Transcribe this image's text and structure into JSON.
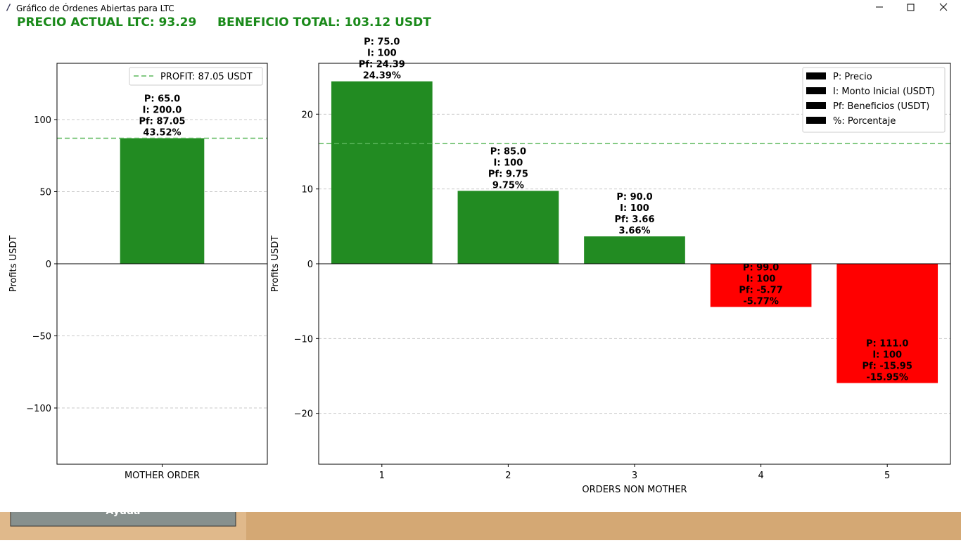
{
  "window": {
    "title": "Gráfico de Órdenes Abiertas para LTC"
  },
  "header": {
    "price": "PRECIO ACTUAL LTC: 93.29",
    "total": "BENEFICIO TOTAL: 103.12 USDT"
  },
  "footer": {
    "button": "Ayuda"
  },
  "chart_data": [
    {
      "type": "bar",
      "categories": [
        "MOTHER ORDER"
      ],
      "values": [
        87.05
      ],
      "colors": [
        "#228b22"
      ],
      "ylabel": "Profits USDT",
      "ylim": [
        -139,
        139
      ],
      "yticks": [
        {
          "value": -100,
          "label": "−100"
        },
        {
          "value": -50,
          "label": "−50"
        },
        0,
        50,
        100
      ],
      "grid": true,
      "annotations": [
        [
          "P: 65.0",
          "I: 200.0",
          "Pf: 87.05",
          "43.52%"
        ]
      ],
      "hline": {
        "value": 87.05,
        "label": "PROFIT: 87.05 USDT",
        "color": "#5cb85c"
      },
      "legend": "upper right"
    },
    {
      "type": "bar",
      "categories": [
        "1",
        "2",
        "3",
        "4",
        "5"
      ],
      "values": [
        24.39,
        9.75,
        3.66,
        -5.77,
        -15.95
      ],
      "colors": [
        "#228b22",
        "#228b22",
        "#228b22",
        "#ff0000",
        "#ff0000"
      ],
      "xlabel": "ORDERS NON MOTHER",
      "ylabel": "Profits USDT",
      "ylim": [
        -26.8,
        26.8
      ],
      "yticks": [
        {
          "value": -20,
          "label": "−20"
        },
        {
          "value": -10,
          "label": "−10"
        },
        0,
        10,
        20
      ],
      "grid": true,
      "annotations": [
        [
          "P: 75.0",
          "I: 100",
          "Pf: 24.39",
          "24.39%"
        ],
        [
          "P: 85.0",
          "I: 100",
          "Pf: 9.75",
          "9.75%"
        ],
        [
          "P: 90.0",
          "I: 100",
          "Pf: 3.66",
          "3.66%"
        ],
        [
          "P: 99.0",
          "I: 100",
          "Pf: -5.77",
          "-5.77%"
        ],
        [
          "P: 111.0",
          "I: 100",
          "Pf: -15.95",
          "-15.95%"
        ]
      ],
      "hline": {
        "value": 16.08,
        "color": "#5cb85c"
      },
      "legend_items": [
        "P: Precio",
        "I: Monto Inicial (USDT)",
        "Pf: Beneficios (USDT)",
        "%: Porcentaje"
      ],
      "legend": "upper right"
    }
  ]
}
